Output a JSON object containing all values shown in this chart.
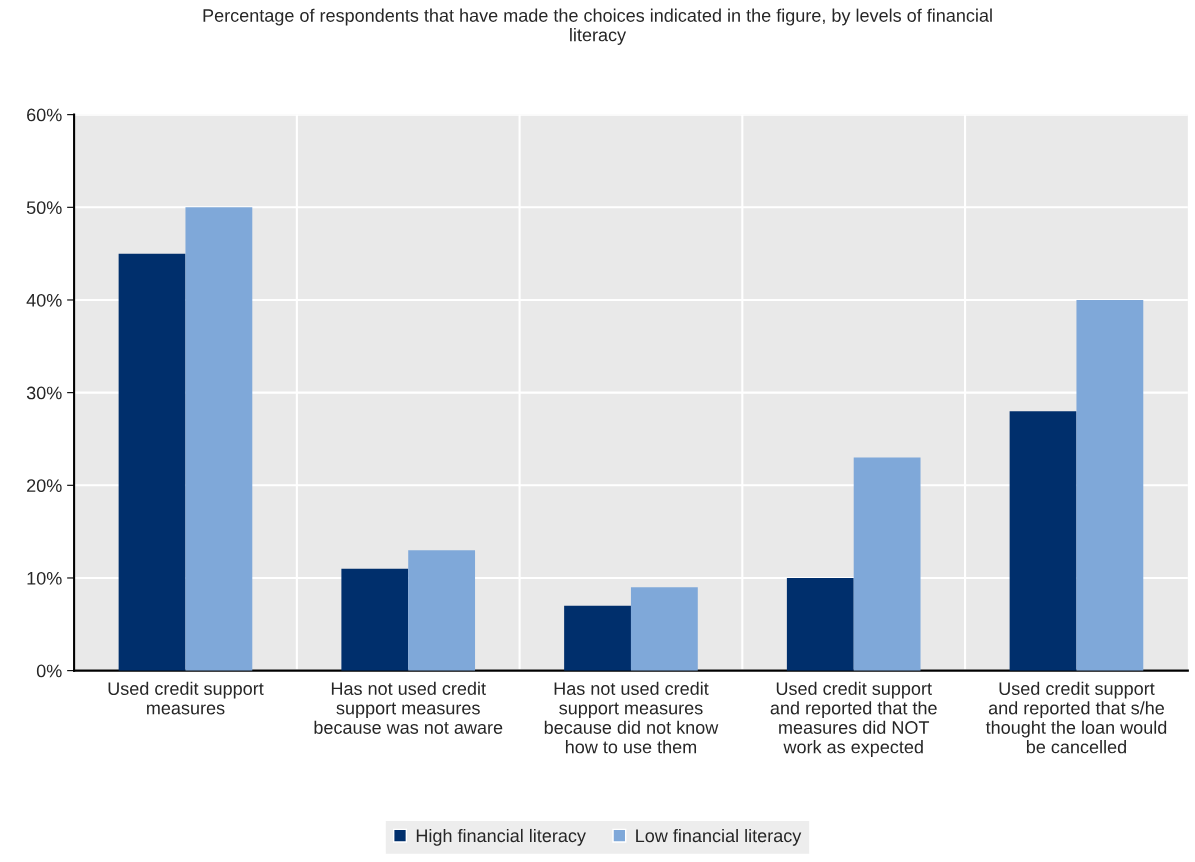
{
  "chart_data": {
    "type": "bar",
    "title": "Percentage of respondents that have made the choices indicated in the figure, by levels of financial\nliteracy",
    "categories": [
      "Used credit support\nmeasures",
      "Has not used credit\nsupport measures\nbecause was not aware",
      "Has not used credit\nsupport measures\nbecause did not know\nhow to use them",
      "Used credit support\nand reported that the\nmeasures did NOT\nwork as expected",
      "Used credit support\nand reported that s/he\nthought the loan would\nbe cancelled"
    ],
    "series": [
      {
        "name": "High financial literacy",
        "color": "#002f6c",
        "values": [
          45,
          11,
          7,
          10,
          28
        ]
      },
      {
        "name": "Low financial literacy",
        "color": "#7fa8d9",
        "values": [
          50,
          13,
          9,
          23,
          40
        ]
      }
    ],
    "ylim": [
      0,
      60
    ],
    "yticks": [
      {
        "value": 0,
        "label": "0%"
      },
      {
        "value": 10,
        "label": "10%"
      },
      {
        "value": 20,
        "label": "20%"
      },
      {
        "value": 30,
        "label": "30%"
      },
      {
        "value": 40,
        "label": "40%"
      },
      {
        "value": 50,
        "label": "50%"
      },
      {
        "value": 60,
        "label": "60%"
      }
    ],
    "grid": true,
    "legend": "bottom"
  }
}
